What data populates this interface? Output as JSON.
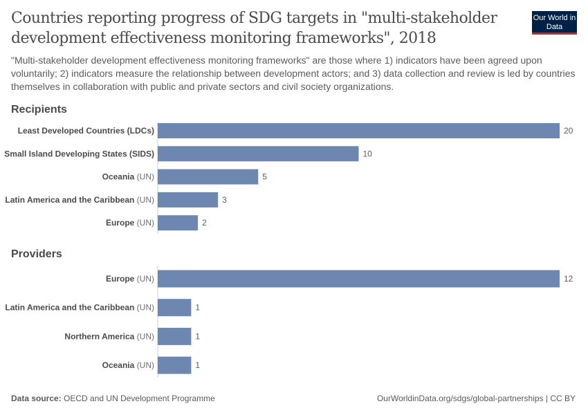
{
  "header": {
    "title": "Countries reporting progress of SDG targets in \"multi-stakeholder development effectiveness monitoring frameworks\", 2018",
    "subtitle": "\"Multi-stakeholder development effectiveness monitoring frameworks\" are those where 1) indicators have been agreed upon voluntarily; 2) indicators measure the relationship between development actors; and 3) data collection and review is led by countries themselves in collaboration with public and private sectors and civil society organizations.",
    "logo": "Our World in Data"
  },
  "footer": {
    "source_label": "Data source:",
    "source": "OECD and UN Development Programme",
    "url": "OurWorldinData.org/sdgs/global-partnerships | CC BY"
  },
  "colors": {
    "bar": "#6d87b0",
    "logo_bg": "#002147",
    "logo_accent": "#ce261e"
  },
  "chart_data": [
    {
      "type": "bar",
      "orientation": "horizontal",
      "facet": "Recipients",
      "categories": [
        "Least Developed Countries (LDCs)",
        "Small Island Developing States (SIDS)",
        "Oceania",
        "Latin America and the Caribbean",
        "Europe"
      ],
      "suffixes": [
        "",
        "",
        "(UN)",
        "(UN)",
        "(UN)"
      ],
      "values": [
        20,
        10,
        5,
        3,
        2
      ]
    },
    {
      "type": "bar",
      "orientation": "horizontal",
      "facet": "Providers",
      "categories": [
        "Europe",
        "Latin America and the Caribbean",
        "Northern America",
        "Oceania"
      ],
      "suffixes": [
        "(UN)",
        "(UN)",
        "(UN)",
        "(UN)"
      ],
      "values": [
        12,
        1,
        1,
        1
      ]
    }
  ]
}
